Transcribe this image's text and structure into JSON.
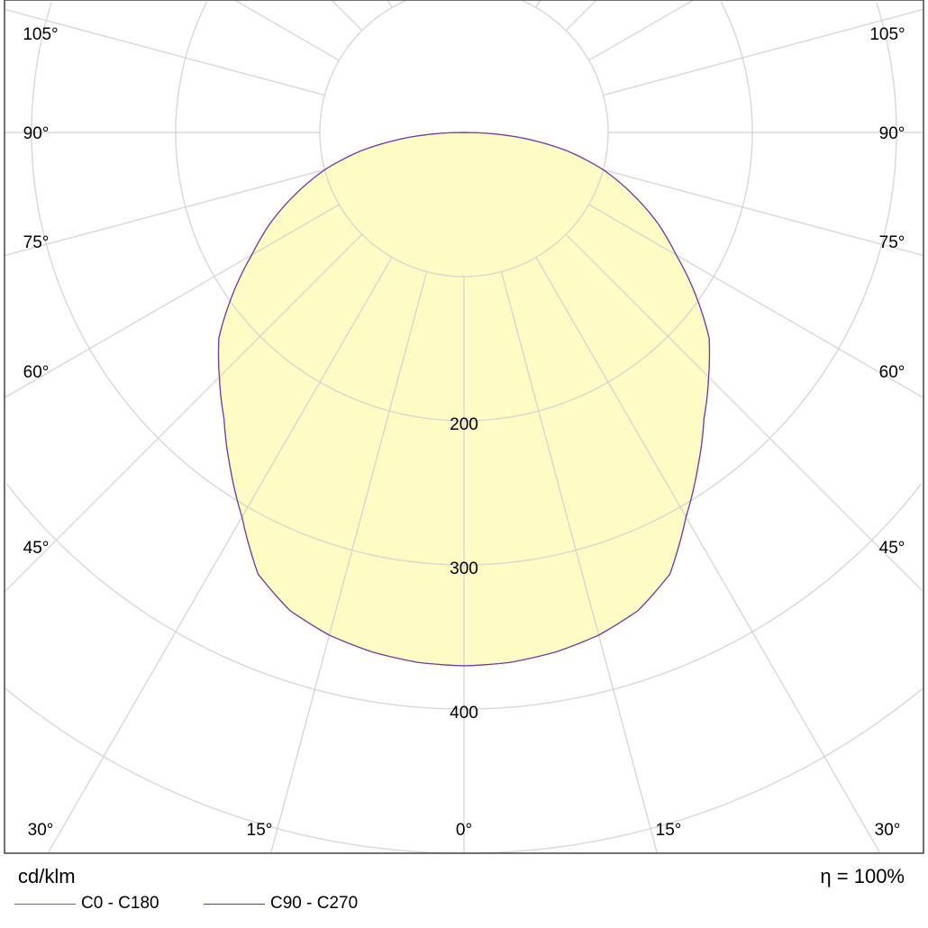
{
  "chart_data": {
    "type": "polar",
    "unit_label": "cd/klm",
    "efficiency_label": "η = 100%",
    "radial_ticks": [
      100,
      200,
      300,
      400,
      500
    ],
    "radial_tick_labels": [
      "200",
      "300",
      "400"
    ],
    "radial_range": [
      0,
      500
    ],
    "angle_tick_labels": [
      "105°",
      "90°",
      "75°",
      "60°",
      "45°",
      "30°",
      "15°",
      "0°"
    ],
    "angle_grid_step_deg": 15,
    "grid": true,
    "legend_placement": "bottom-left",
    "angles_deg": [
      0,
      5,
      10,
      15,
      20,
      25,
      30,
      35,
      40,
      45,
      50,
      55,
      60,
      65,
      70,
      75,
      80,
      85,
      90
    ],
    "series": [
      {
        "name": "C0 - C180",
        "color": "#d04040",
        "values": [
          370,
          369,
          366,
          361,
          353,
          338,
          308,
          283,
          259,
          240,
          222,
          196,
          170,
          148,
          124,
          100,
          72,
          38,
          0
        ]
      },
      {
        "name": "C90 - C270",
        "color": "#4040c0",
        "values": [
          370,
          369,
          366,
          361,
          353,
          338,
          308,
          283,
          259,
          240,
          222,
          196,
          170,
          148,
          124,
          100,
          72,
          38,
          0
        ]
      }
    ],
    "fill_color": "#fffbc4",
    "grid_color": "#d4d4d4"
  }
}
